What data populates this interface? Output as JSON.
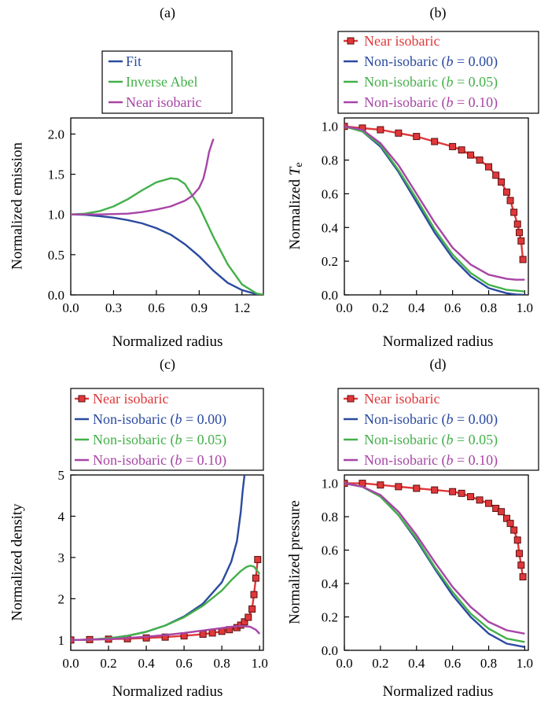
{
  "chart_data": [
    {
      "type": "line",
      "panel_label": "(a)",
      "xlabel": "Normalized radius",
      "ylabel": "Normalized emission",
      "xlim": [
        0.0,
        1.35
      ],
      "ylim": [
        0.0,
        2.2
      ],
      "xticks": [
        "0.0",
        "0.3",
        "0.6",
        "0.9",
        "1.2"
      ],
      "xtick_values": [
        0.0,
        0.3,
        0.6,
        0.9,
        1.2
      ],
      "yticks": [
        "0.0",
        "0.5",
        "1.0",
        "1.5",
        "2.0"
      ],
      "ytick_values": [
        0.0,
        0.5,
        1.0,
        1.5,
        2.0
      ],
      "legend_position": "above",
      "series": [
        {
          "name": "Fit",
          "color": "#2b4aa0",
          "marker": "none",
          "x": [
            0.0,
            0.1,
            0.2,
            0.3,
            0.4,
            0.5,
            0.6,
            0.7,
            0.8,
            0.9,
            1.0,
            1.1,
            1.2,
            1.3,
            1.35
          ],
          "y": [
            1.0,
            0.995,
            0.98,
            0.96,
            0.93,
            0.89,
            0.83,
            0.75,
            0.63,
            0.48,
            0.3,
            0.15,
            0.06,
            0.01,
            0.0
          ]
        },
        {
          "name": "Inverse Abel",
          "color": "#44b04a",
          "marker": "none",
          "x": [
            0.0,
            0.1,
            0.2,
            0.3,
            0.4,
            0.5,
            0.6,
            0.7,
            0.75,
            0.8,
            0.9,
            1.0,
            1.1,
            1.2,
            1.3,
            1.35
          ],
          "y": [
            1.0,
            1.01,
            1.04,
            1.1,
            1.19,
            1.3,
            1.4,
            1.45,
            1.44,
            1.38,
            1.1,
            0.72,
            0.38,
            0.13,
            0.02,
            0.0
          ]
        },
        {
          "name": "Near isobaric",
          "color": "#a745a5",
          "marker": "none",
          "x": [
            0.0,
            0.2,
            0.4,
            0.5,
            0.6,
            0.7,
            0.8,
            0.85,
            0.9,
            0.93,
            0.95,
            0.97,
            0.99,
            1.0
          ],
          "y": [
            1.0,
            1.0,
            1.01,
            1.03,
            1.06,
            1.1,
            1.17,
            1.23,
            1.33,
            1.45,
            1.6,
            1.78,
            1.89,
            1.94
          ]
        }
      ]
    },
    {
      "type": "line",
      "panel_label": "(b)",
      "xlabel": "Normalized radius",
      "ylabel_main": "Normalized ",
      "ylabel_italic": "T",
      "ylabel_sub": "e",
      "xlim": [
        0.0,
        1.02
      ],
      "ylim": [
        0.0,
        1.05
      ],
      "xticks": [
        "0.0",
        "0.2",
        "0.4",
        "0.6",
        "0.8",
        "1.0"
      ],
      "xtick_values": [
        0.0,
        0.2,
        0.4,
        0.6,
        0.8,
        1.0
      ],
      "yticks": [
        "0.0",
        "0.2",
        "0.4",
        "0.6",
        "0.8",
        "1.0"
      ],
      "ytick_values": [
        0.0,
        0.2,
        0.4,
        0.6,
        0.8,
        1.0
      ],
      "legend_position": "above",
      "series": [
        {
          "name": "Near isobaric",
          "color": "#e0383a",
          "marker": "square",
          "x": [
            0.0,
            0.1,
            0.2,
            0.3,
            0.4,
            0.5,
            0.6,
            0.65,
            0.7,
            0.75,
            0.8,
            0.84,
            0.87,
            0.9,
            0.92,
            0.94,
            0.96,
            0.97,
            0.98,
            0.99
          ],
          "y": [
            1.0,
            0.99,
            0.98,
            0.96,
            0.94,
            0.91,
            0.88,
            0.86,
            0.83,
            0.8,
            0.76,
            0.71,
            0.67,
            0.61,
            0.56,
            0.49,
            0.42,
            0.37,
            0.32,
            0.21
          ]
        },
        {
          "name_prefix": "Non-isobaric (",
          "name_var": "b",
          "name_suffix": " = 0.00)",
          "color": "#2b4aa0",
          "marker": "none",
          "x": [
            0.0,
            0.1,
            0.2,
            0.3,
            0.4,
            0.5,
            0.6,
            0.7,
            0.8,
            0.9,
            0.95,
            1.0
          ],
          "y": [
            1.0,
            0.97,
            0.88,
            0.73,
            0.55,
            0.37,
            0.22,
            0.11,
            0.04,
            0.01,
            0.003,
            0.0
          ]
        },
        {
          "name_prefix": "Non-isobaric (",
          "name_var": "b",
          "name_suffix": " = 0.05)",
          "color": "#44b04a",
          "marker": "none",
          "x": [
            0.0,
            0.1,
            0.2,
            0.3,
            0.4,
            0.5,
            0.6,
            0.7,
            0.8,
            0.9,
            0.95,
            1.0
          ],
          "y": [
            1.0,
            0.97,
            0.89,
            0.74,
            0.57,
            0.39,
            0.24,
            0.13,
            0.06,
            0.03,
            0.025,
            0.02
          ]
        },
        {
          "name_prefix": "Non-isobaric (",
          "name_var": "b",
          "name_suffix": " = 0.10)",
          "color": "#a745a5",
          "marker": "none",
          "x": [
            0.0,
            0.1,
            0.2,
            0.3,
            0.4,
            0.5,
            0.6,
            0.7,
            0.8,
            0.9,
            0.95,
            1.0
          ],
          "y": [
            1.0,
            0.98,
            0.9,
            0.77,
            0.6,
            0.43,
            0.28,
            0.18,
            0.12,
            0.095,
            0.09,
            0.09
          ]
        }
      ]
    },
    {
      "type": "line",
      "panel_label": "(c)",
      "xlabel": "Normalized radius",
      "ylabel": "Normalized density",
      "xlim": [
        0.0,
        1.02
      ],
      "ylim": [
        0.75,
        5.0
      ],
      "xticks": [
        "0.0",
        "0.2",
        "0.4",
        "0.6",
        "0.8",
        "1.0"
      ],
      "xtick_values": [
        0.0,
        0.2,
        0.4,
        0.6,
        0.8,
        1.0
      ],
      "yticks": [
        "1",
        "2",
        "3",
        "4",
        "5"
      ],
      "ytick_values": [
        1,
        2,
        3,
        4,
        5
      ],
      "legend_position": "above",
      "series": [
        {
          "name": "Near isobaric",
          "color": "#e0383a",
          "marker": "square",
          "x": [
            0.0,
            0.1,
            0.2,
            0.3,
            0.4,
            0.5,
            0.6,
            0.7,
            0.75,
            0.8,
            0.84,
            0.88,
            0.9,
            0.92,
            0.94,
            0.96,
            0.97,
            0.98,
            0.99
          ],
          "y": [
            1.0,
            1.01,
            1.02,
            1.03,
            1.05,
            1.07,
            1.1,
            1.14,
            1.17,
            1.21,
            1.25,
            1.3,
            1.36,
            1.44,
            1.55,
            1.75,
            2.1,
            2.5,
            2.95
          ]
        },
        {
          "name_prefix": "Non-isobaric (",
          "name_var": "b",
          "name_suffix": " = 0.00)",
          "color": "#2b4aa0",
          "marker": "none",
          "x": [
            0.0,
            0.1,
            0.2,
            0.3,
            0.4,
            0.5,
            0.6,
            0.7,
            0.8,
            0.85,
            0.88,
            0.9,
            0.91,
            0.92
          ],
          "y": [
            1.0,
            1.01,
            1.04,
            1.1,
            1.2,
            1.35,
            1.57,
            1.88,
            2.4,
            2.9,
            3.4,
            4.1,
            4.6,
            5.0
          ]
        },
        {
          "name_prefix": "Non-isobaric (",
          "name_var": "b",
          "name_suffix": " = 0.05)",
          "color": "#44b04a",
          "marker": "none",
          "x": [
            0.0,
            0.1,
            0.2,
            0.3,
            0.4,
            0.5,
            0.6,
            0.7,
            0.8,
            0.85,
            0.9,
            0.93,
            0.95,
            0.97,
            1.0
          ],
          "y": [
            1.0,
            1.01,
            1.04,
            1.1,
            1.2,
            1.35,
            1.55,
            1.83,
            2.2,
            2.45,
            2.67,
            2.77,
            2.8,
            2.78,
            2.6
          ]
        },
        {
          "name_prefix": "Non-isobaric (",
          "name_var": "b",
          "name_suffix": " = 0.10)",
          "color": "#a745a5",
          "marker": "none",
          "x": [
            0.0,
            0.1,
            0.2,
            0.3,
            0.4,
            0.5,
            0.6,
            0.7,
            0.8,
            0.85,
            0.9,
            0.95,
            0.98,
            1.0
          ],
          "y": [
            1.0,
            1.01,
            1.02,
            1.05,
            1.08,
            1.12,
            1.17,
            1.23,
            1.29,
            1.32,
            1.34,
            1.32,
            1.25,
            1.15
          ]
        }
      ]
    },
    {
      "type": "line",
      "panel_label": "(d)",
      "xlabel": "Normalized radius",
      "ylabel": "Normalized pressure",
      "xlim": [
        0.0,
        1.02
      ],
      "ylim": [
        0.0,
        1.05
      ],
      "xticks": [
        "0.0",
        "0.2",
        "0.4",
        "0.6",
        "0.8",
        "1.0"
      ],
      "xtick_values": [
        0.0,
        0.2,
        0.4,
        0.6,
        0.8,
        1.0
      ],
      "yticks": [
        "0.0",
        "0.2",
        "0.4",
        "0.6",
        "0.8",
        "1.0"
      ],
      "ytick_values": [
        0.0,
        0.2,
        0.4,
        0.6,
        0.8,
        1.0
      ],
      "legend_position": "above",
      "series": [
        {
          "name": "Near isobaric",
          "color": "#e0383a",
          "marker": "square",
          "x": [
            0.0,
            0.1,
            0.2,
            0.3,
            0.4,
            0.5,
            0.6,
            0.65,
            0.7,
            0.75,
            0.8,
            0.84,
            0.87,
            0.9,
            0.92,
            0.94,
            0.96,
            0.97,
            0.98,
            0.99
          ],
          "y": [
            1.0,
            1.0,
            0.99,
            0.98,
            0.97,
            0.96,
            0.95,
            0.94,
            0.92,
            0.9,
            0.88,
            0.85,
            0.83,
            0.79,
            0.76,
            0.72,
            0.66,
            0.58,
            0.51,
            0.44
          ]
        },
        {
          "name_prefix": "Non-isobaric (",
          "name_var": "b",
          "name_suffix": " = 0.00)",
          "color": "#2b4aa0",
          "marker": "none",
          "x": [
            0.0,
            0.1,
            0.2,
            0.3,
            0.4,
            0.5,
            0.6,
            0.7,
            0.8,
            0.9,
            1.0
          ],
          "y": [
            1.0,
            0.98,
            0.92,
            0.81,
            0.66,
            0.49,
            0.33,
            0.2,
            0.1,
            0.04,
            0.02
          ]
        },
        {
          "name_prefix": "Non-isobaric (",
          "name_var": "b",
          "name_suffix": " = 0.05)",
          "color": "#44b04a",
          "marker": "none",
          "x": [
            0.0,
            0.1,
            0.2,
            0.3,
            0.4,
            0.5,
            0.6,
            0.7,
            0.8,
            0.9,
            1.0
          ],
          "y": [
            1.0,
            0.98,
            0.92,
            0.81,
            0.67,
            0.5,
            0.35,
            0.22,
            0.13,
            0.07,
            0.05
          ]
        },
        {
          "name_prefix": "Non-isobaric (",
          "name_var": "b",
          "name_suffix": " = 0.10)",
          "color": "#a745a5",
          "marker": "none",
          "x": [
            0.0,
            0.1,
            0.2,
            0.3,
            0.4,
            0.5,
            0.6,
            0.7,
            0.8,
            0.9,
            1.0
          ],
          "y": [
            1.0,
            0.98,
            0.93,
            0.83,
            0.69,
            0.53,
            0.38,
            0.26,
            0.17,
            0.12,
            0.1
          ]
        }
      ]
    }
  ]
}
